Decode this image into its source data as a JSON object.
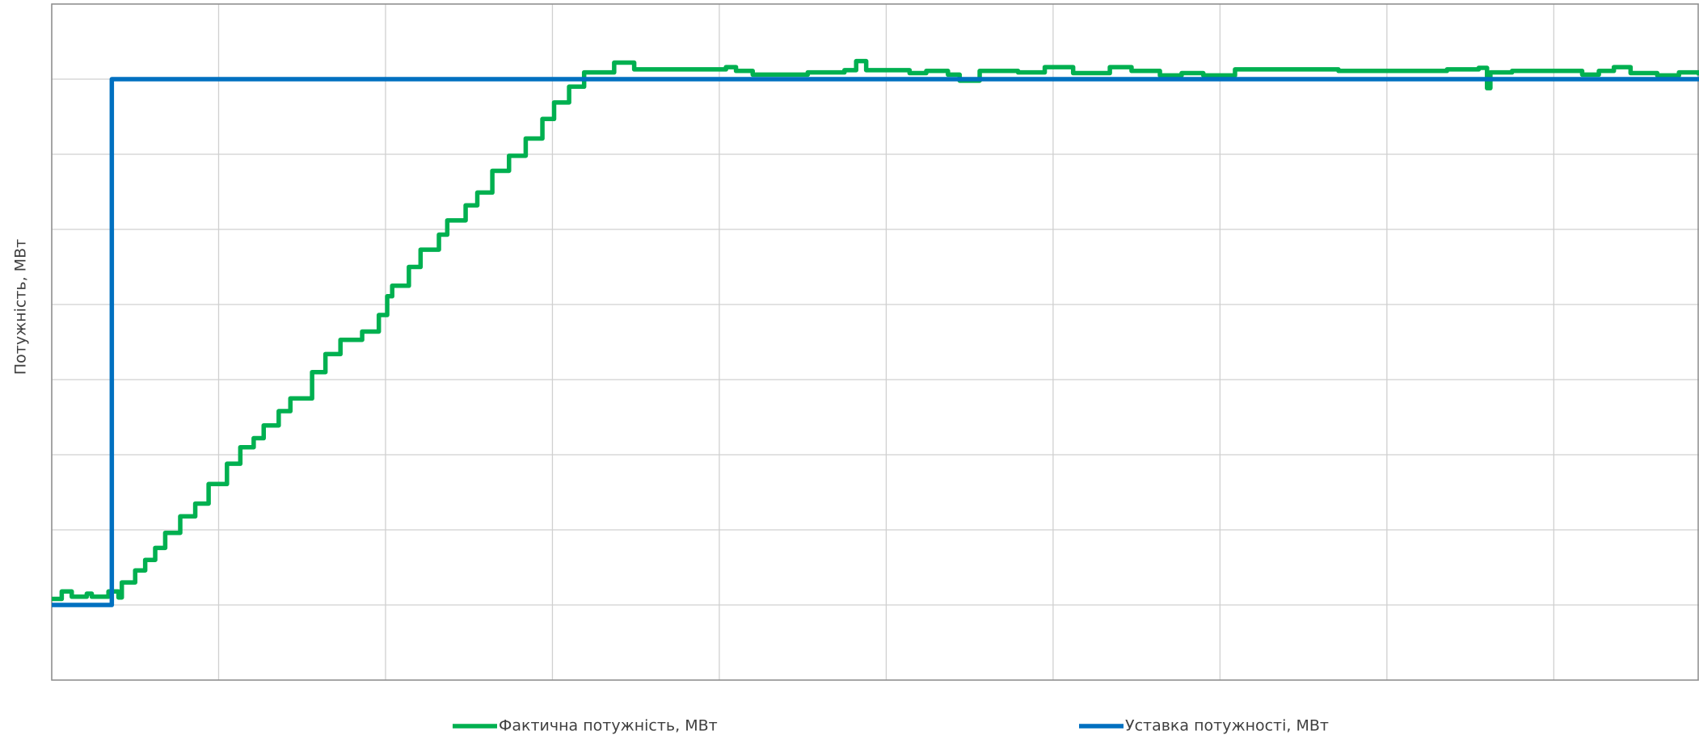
{
  "chart_data": {
    "type": "line",
    "step": "post",
    "ylabel": "Потужність, МВт",
    "xlim": [
      0,
      9.87
    ],
    "xticks": [
      0,
      1,
      2,
      3,
      4,
      5,
      6,
      7,
      8,
      9
    ],
    "ylim": [
      0,
      9
    ],
    "yticks": [
      0,
      1,
      2,
      3,
      4,
      5,
      6,
      7,
      8,
      9
    ],
    "grid": true,
    "legend": "bottom",
    "series": [
      {
        "name": "Фактична потужність, МВт",
        "color": "#00b050",
        "x": [
          0,
          0.06,
          0.12,
          0.21,
          0.24,
          0.34,
          0.4,
          0.42,
          0.5,
          0.56,
          0.62,
          0.68,
          0.77,
          0.86,
          0.94,
          1.05,
          1.13,
          1.21,
          1.27,
          1.36,
          1.43,
          1.56,
          1.64,
          1.73,
          1.86,
          1.96,
          2.01,
          2.04,
          2.14,
          2.21,
          2.32,
          2.37,
          2.48,
          2.55,
          2.64,
          2.74,
          2.84,
          2.94,
          3.01,
          3.1,
          3.19,
          3.37,
          3.49,
          4.04,
          4.1,
          4.2,
          4.53,
          4.62,
          4.75,
          4.82,
          4.88,
          5.14,
          5.24,
          5.37,
          5.44,
          5.56,
          5.79,
          5.95,
          6.12,
          6.34,
          6.47,
          6.64,
          6.77,
          6.9,
          7.09,
          7.64,
          7.71,
          8.36,
          8.55,
          8.6,
          8.62,
          8.75,
          9.17,
          9.27,
          9.36,
          9.46,
          9.62,
          9.75,
          9.87
        ],
        "values": [
          1.08,
          1.18,
          1.11,
          1.15,
          1.11,
          1.18,
          1.1,
          1.3,
          1.46,
          1.6,
          1.76,
          1.96,
          2.18,
          2.35,
          2.61,
          2.88,
          3.1,
          3.22,
          3.39,
          3.58,
          3.75,
          4.1,
          4.34,
          4.53,
          4.64,
          4.86,
          5.11,
          5.25,
          5.5,
          5.73,
          5.93,
          6.12,
          6.32,
          6.49,
          6.78,
          6.98,
          7.21,
          7.47,
          7.69,
          7.9,
          8.09,
          8.22,
          8.13,
          8.16,
          8.11,
          8.06,
          8.09,
          8.09,
          8.12,
          8.24,
          8.12,
          8.08,
          8.11,
          8.06,
          7.98,
          8.11,
          8.09,
          8.16,
          8.08,
          8.16,
          8.11,
          8.05,
          8.08,
          8.05,
          8.13,
          8.13,
          8.11,
          8.13,
          8.15,
          7.88,
          8.09,
          8.11,
          8.06,
          8.11,
          8.16,
          8.08,
          8.05,
          8.09,
          8.05
        ]
      },
      {
        "name": "Уставка потужності, МВт",
        "color": "#0070c0",
        "x": [
          0,
          0.36,
          9.87
        ],
        "values": [
          1,
          8,
          8
        ]
      }
    ]
  }
}
